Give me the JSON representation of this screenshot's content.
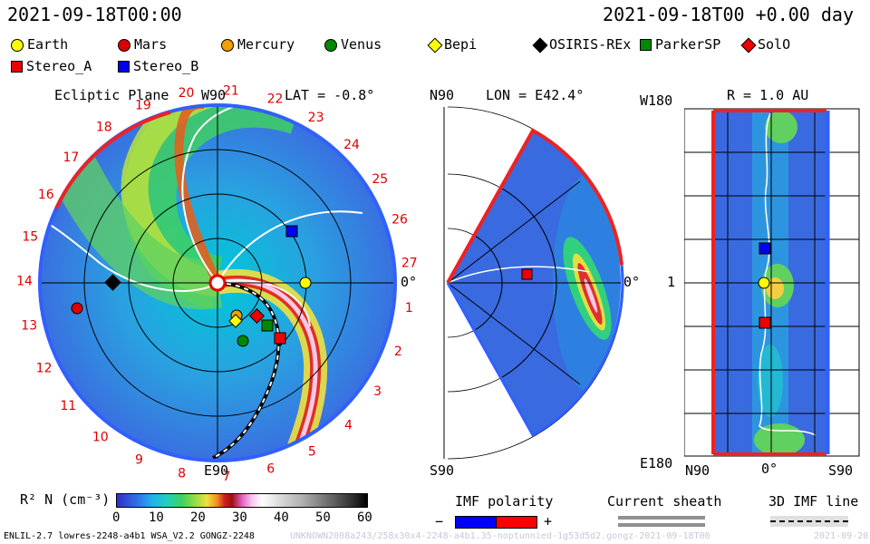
{
  "header": {
    "left_datetime": "2021-09-18T00:00",
    "right_datetime": "2021-09-18T00 +0.00 day"
  },
  "legend": [
    {
      "label": "Earth",
      "shape": "circle",
      "color": "#ffff00"
    },
    {
      "label": "Mars",
      "shape": "circle",
      "color": "#dd0000"
    },
    {
      "label": "Mercury",
      "shape": "circle",
      "color": "#f0a000"
    },
    {
      "label": "Venus",
      "shape": "circle",
      "color": "#008800"
    },
    {
      "label": "Bepi",
      "shape": "diamond",
      "color": "#ffff00"
    },
    {
      "label": "OSIRIS-REx",
      "shape": "diamond",
      "color": "#000000"
    },
    {
      "label": "ParkerSP",
      "shape": "square",
      "color": "#008800"
    },
    {
      "label": "SolO",
      "shape": "diamond",
      "color": "#ee0000"
    },
    {
      "label": "Stereo_A",
      "shape": "square",
      "color": "#ee0000"
    },
    {
      "label": "Stereo_B",
      "shape": "square",
      "color": "#0000ee"
    }
  ],
  "ecliptic": {
    "title": "Ecliptic Plane",
    "lat_label": "LAT = -0.8°",
    "top_label": "W90",
    "bottom_label": "E90",
    "right_label": "0°",
    "carrington_labels": [
      "1",
      "2",
      "3",
      "4",
      "5",
      "6",
      "7",
      "8",
      "9",
      "10",
      "11",
      "12",
      "13",
      "14",
      "15",
      "16",
      "17",
      "18",
      "19",
      "20",
      "21",
      "22",
      "23",
      "24",
      "25",
      "26",
      "27"
    ]
  },
  "meridional": {
    "title": "LON = E42.4°",
    "top_label": "N90",
    "bottom_label": "S90",
    "right_label": "0°"
  },
  "sphere": {
    "title": "R = 1.0 AU",
    "top_left_label": "W180",
    "left_mid_label": "1",
    "bottom_left_label": "E180",
    "bottom_labels": [
      "N90",
      "0°",
      "S90"
    ]
  },
  "colorbar": {
    "label": "R² N (cm⁻³)",
    "ticks": [
      "0",
      "10",
      "20",
      "30",
      "40",
      "50",
      "60"
    ]
  },
  "imf": {
    "title": "IMF polarity",
    "minus": "−",
    "plus": "+",
    "current_sheath": "Current sheath",
    "imf_line": "3D IMF line"
  },
  "footer": {
    "model_info": "ENLIL-2.7 lowres-2248-a4b1 WSA_V2.2 GONGZ-2248",
    "run_info": "UNKNOWN2008a243/258x30x4-2248-a4b1.35-noptunnied-1g53d5d2.gongz-2021-09-18T00",
    "right_info": "2021-09-20"
  }
}
